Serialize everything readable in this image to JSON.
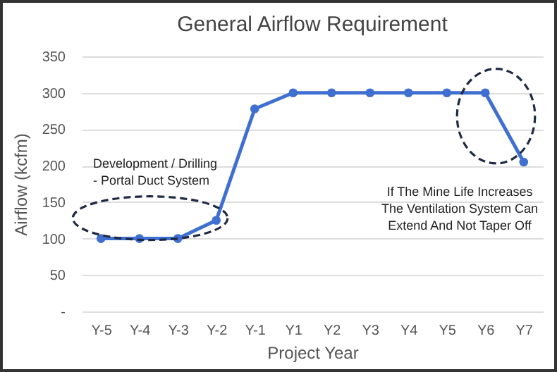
{
  "chart_data": {
    "type": "line",
    "title": "General Airflow Requirement",
    "xlabel": "Project Year",
    "ylabel": "Airflow (kcfm)",
    "categories": [
      "Y-5",
      "Y-4",
      "Y-3",
      "Y-2",
      "Y-1",
      "Y1",
      "Y2",
      "Y3",
      "Y4",
      "Y5",
      "Y6",
      "Y7"
    ],
    "series": [
      {
        "color": "#3f6fd1",
        "values": [
          100,
          100,
          100,
          125,
          278,
          300,
          300,
          300,
          300,
          300,
          300,
          205
        ]
      }
    ],
    "ylim": [
      0,
      350
    ],
    "yticks": [
      {
        "value": 0,
        "label": "-"
      },
      50,
      100,
      150,
      200,
      250,
      300,
      350
    ],
    "grid": "y",
    "marker": "circle",
    "line_style": "solid",
    "annotations": [
      "Development / Drilling\n- Portal Duct System",
      "If The Mine Life Increases\nThe Ventilation System Can\nExtend And Not Taper Off"
    ]
  }
}
